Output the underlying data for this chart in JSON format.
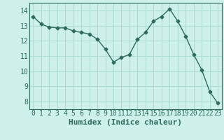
{
  "x": [
    0,
    1,
    2,
    3,
    4,
    5,
    6,
    7,
    8,
    9,
    10,
    11,
    12,
    13,
    14,
    15,
    16,
    17,
    18,
    19,
    20,
    21,
    22,
    23
  ],
  "y": [
    13.6,
    13.1,
    12.9,
    12.85,
    12.85,
    12.65,
    12.55,
    12.45,
    12.1,
    11.45,
    10.6,
    10.9,
    11.1,
    12.1,
    12.55,
    13.3,
    13.6,
    14.1,
    13.3,
    12.3,
    11.1,
    10.1,
    8.65,
    7.9
  ],
  "line_color": "#2d6b5e",
  "marker": "D",
  "marker_size": 2.5,
  "bg_color": "#cef0ea",
  "grid_color": "#aeddd6",
  "xlabel": "Humidex (Indice chaleur)",
  "xlabel_fontsize": 8,
  "xtick_labels": [
    "0",
    "1",
    "2",
    "3",
    "4",
    "5",
    "6",
    "7",
    "8",
    "9",
    "10",
    "11",
    "12",
    "13",
    "14",
    "15",
    "16",
    "17",
    "18",
    "19",
    "20",
    "21",
    "22",
    "23"
  ],
  "ylim": [
    7.5,
    14.5
  ],
  "yticks": [
    8,
    9,
    10,
    11,
    12,
    13,
    14
  ],
  "line_width": 1.0,
  "tick_fontsize": 7.0
}
